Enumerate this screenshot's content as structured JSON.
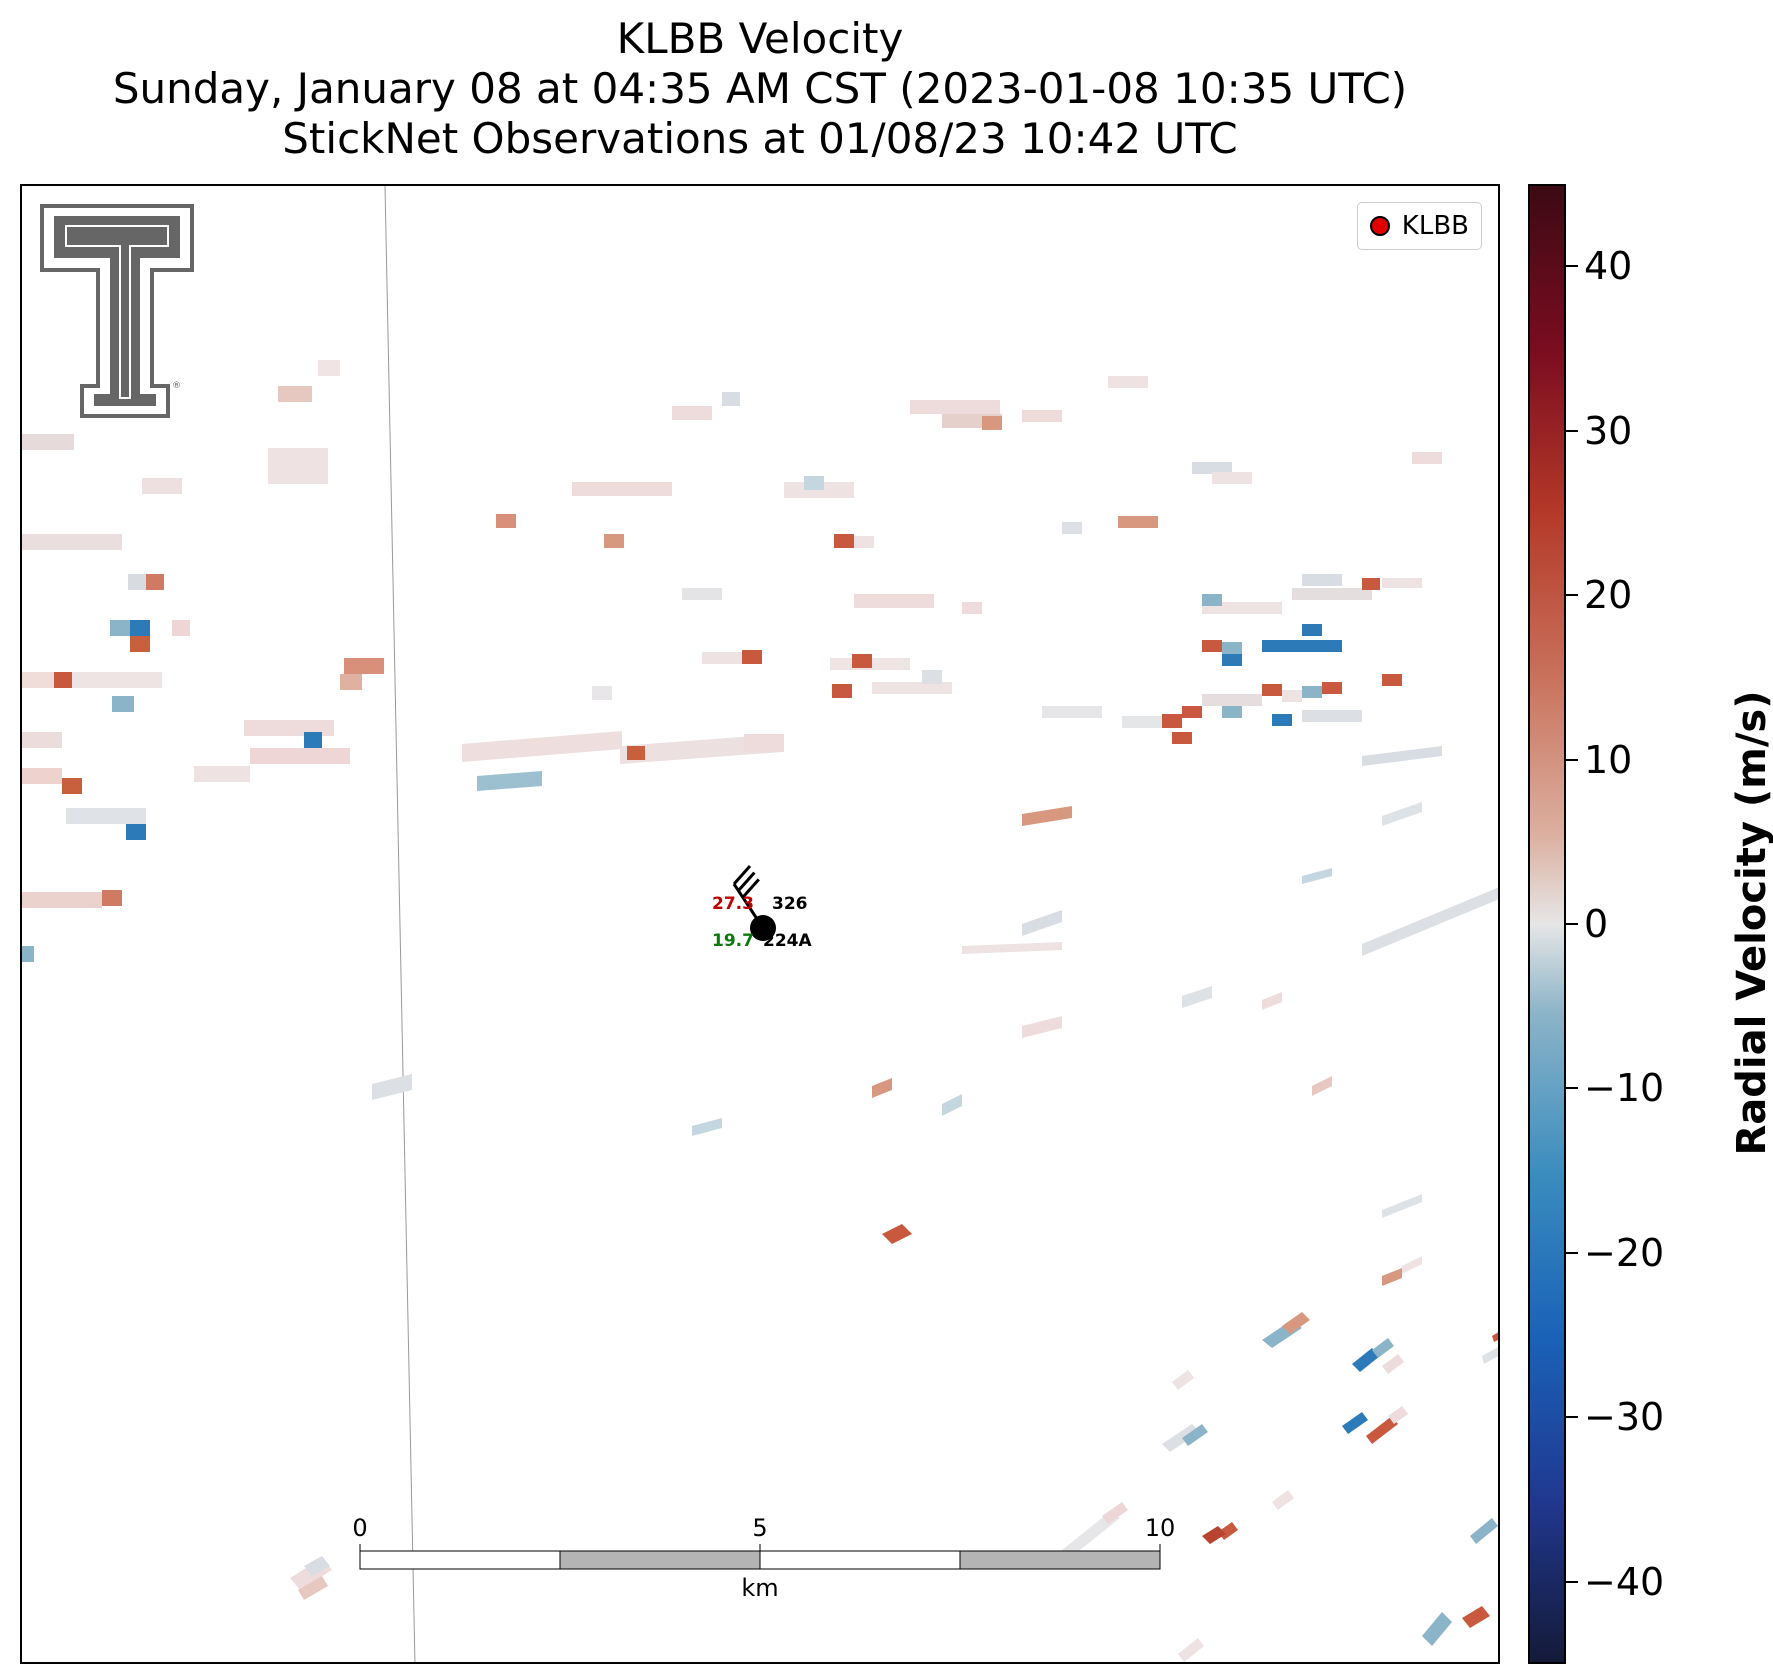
{
  "title": {
    "line1": "KLBB Velocity",
    "line2": "Sunday, January 08 at 04:35 AM CST (2023-01-08 10:35 UTC)",
    "line3": "StickNet Observations at 01/08/23 10:42 UTC"
  },
  "legend": {
    "label": "KLBB"
  },
  "station": {
    "id": "224A",
    "temperature": "27.3",
    "dewpoint": "19.7",
    "pressure": "326",
    "wind_direction_deg": 330,
    "wind_speed_barbs": 3
  },
  "scalebar": {
    "ticks": [
      "0",
      "5",
      "10"
    ],
    "unit": "km"
  },
  "colorbar": {
    "title": "Radial Velocity (m/s)",
    "ticks": [
      "40",
      "30",
      "20",
      "10",
      "0",
      "−10",
      "−20",
      "−30",
      "−40"
    ],
    "range": [
      -45,
      45
    ]
  },
  "colors": {
    "strong_inbound": "#2070b0",
    "inbound": "#8cb4c8",
    "near_zero": "#e6e6e6",
    "outbound": "#d89880",
    "strong_outbound": "#c04830"
  }
}
